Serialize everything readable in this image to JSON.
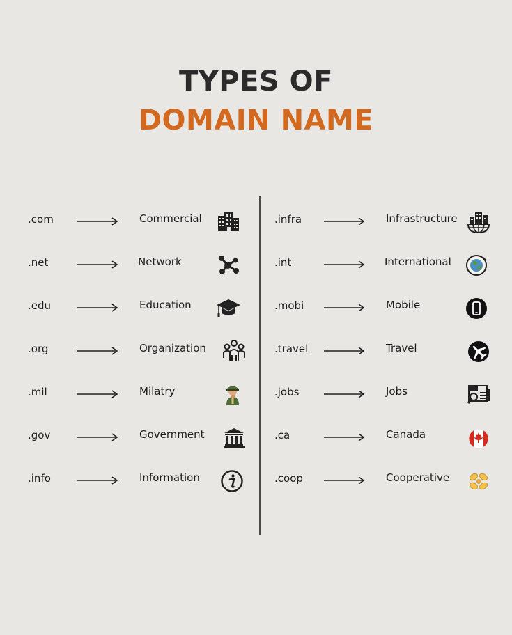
{
  "title": {
    "line1": "TYPES OF",
    "line2": "DOMAIN NAME"
  },
  "colors": {
    "accent": "#d2691e",
    "title_dark": "#2b2b2b",
    "background": "#e9e7e4"
  },
  "left": [
    {
      "ext": ".com",
      "label": "Commercial",
      "icon": "office-building-icon"
    },
    {
      "ext": ".net",
      "label": "Network",
      "icon": "network-icon"
    },
    {
      "ext": ".edu",
      "label": "Education",
      "icon": "graduation-cap-icon"
    },
    {
      "ext": ".org",
      "label": "Organization",
      "icon": "people-group-icon"
    },
    {
      "ext": ".mil",
      "label": "Milatry",
      "icon": "soldier-icon"
    },
    {
      "ext": ".gov",
      "label": "Government",
      "icon": "government-building-icon"
    },
    {
      "ext": ".info",
      "label": "Information",
      "icon": "info-icon"
    }
  ],
  "right": [
    {
      "ext": ".infra",
      "label": "Infrastructure",
      "icon": "city-globe-icon"
    },
    {
      "ext": ".int",
      "label": "International",
      "icon": "globe-icon"
    },
    {
      "ext": ".mobi",
      "label": "Mobile",
      "icon": "mobile-phone-icon"
    },
    {
      "ext": ".travel",
      "label": "Travel",
      "icon": "airplane-icon"
    },
    {
      "ext": ".jobs",
      "label": "Jobs",
      "icon": "job-search-icon"
    },
    {
      "ext": ".ca",
      "label": "Canada",
      "icon": "canada-flag-icon"
    },
    {
      "ext": ".coop",
      "label": "Cooperative",
      "icon": "cooperative-hands-icon"
    }
  ]
}
